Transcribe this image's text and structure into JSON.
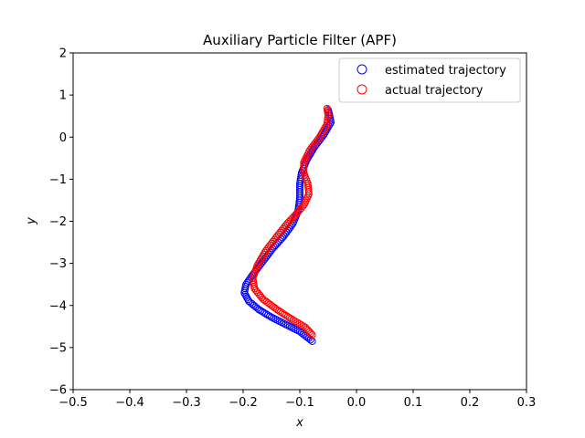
{
  "chart_data": {
    "type": "scatter",
    "title": "Auxiliary Particle Filter (APF)",
    "xlabel": "x",
    "ylabel": "y",
    "xlim": [
      -0.5,
      0.3
    ],
    "ylim": [
      -6,
      2
    ],
    "xticks": [
      -0.5,
      -0.4,
      -0.3,
      -0.2,
      -0.1,
      0.0,
      0.1,
      0.2,
      0.3
    ],
    "xtick_labels": [
      "−0.5",
      "−0.4",
      "−0.3",
      "−0.2",
      "−0.1",
      "0.0",
      "0.1",
      "0.2",
      "0.3"
    ],
    "yticks": [
      -6,
      -5,
      -4,
      -3,
      -2,
      -1,
      0,
      1,
      2
    ],
    "ytick_labels": [
      "−6",
      "−5",
      "−4",
      "−3",
      "−2",
      "−1",
      "0",
      "1",
      "2"
    ],
    "grid": false,
    "legend_position": "upper-right",
    "marker": "open-circle",
    "series": [
      {
        "name": "estimated trajectory",
        "color": "#0000ff",
        "path": [
          [
            -0.05,
            0.65
          ],
          [
            -0.048,
            0.55
          ],
          [
            -0.045,
            0.35
          ],
          [
            -0.058,
            0.05
          ],
          [
            -0.075,
            -0.25
          ],
          [
            -0.088,
            -0.55
          ],
          [
            -0.097,
            -0.85
          ],
          [
            -0.1,
            -1.1
          ],
          [
            -0.1,
            -1.45
          ],
          [
            -0.103,
            -1.75
          ],
          [
            -0.112,
            -2.05
          ],
          [
            -0.128,
            -2.35
          ],
          [
            -0.148,
            -2.65
          ],
          [
            -0.165,
            -2.95
          ],
          [
            -0.182,
            -3.25
          ],
          [
            -0.195,
            -3.5
          ],
          [
            -0.198,
            -3.7
          ],
          [
            -0.19,
            -3.9
          ],
          [
            -0.172,
            -4.1
          ],
          [
            -0.15,
            -4.28
          ],
          [
            -0.125,
            -4.45
          ],
          [
            -0.1,
            -4.62
          ],
          [
            -0.078,
            -4.85
          ]
        ]
      },
      {
        "name": "actual trajectory",
        "color": "#ff0000",
        "path": [
          [
            -0.052,
            0.68
          ],
          [
            -0.05,
            0.52
          ],
          [
            -0.052,
            0.3
          ],
          [
            -0.065,
            0.0
          ],
          [
            -0.082,
            -0.3
          ],
          [
            -0.093,
            -0.6
          ],
          [
            -0.093,
            -0.85
          ],
          [
            -0.086,
            -1.1
          ],
          [
            -0.084,
            -1.35
          ],
          [
            -0.092,
            -1.6
          ],
          [
            -0.108,
            -1.85
          ],
          [
            -0.122,
            -2.05
          ],
          [
            -0.14,
            -2.35
          ],
          [
            -0.16,
            -2.7
          ],
          [
            -0.175,
            -3.05
          ],
          [
            -0.183,
            -3.35
          ],
          [
            -0.18,
            -3.6
          ],
          [
            -0.165,
            -3.85
          ],
          [
            -0.14,
            -4.1
          ],
          [
            -0.115,
            -4.32
          ],
          [
            -0.09,
            -4.52
          ],
          [
            -0.078,
            -4.7
          ]
        ]
      }
    ]
  }
}
